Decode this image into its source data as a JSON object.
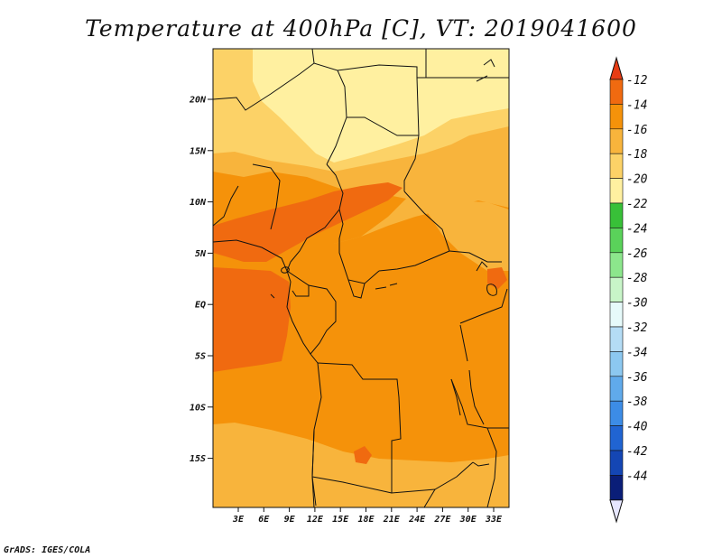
{
  "title": "Temperature at 400hPa [C], VT: 2019041600",
  "credit": "GrADS: IGES/COLA",
  "map": {
    "lat_ticks": [
      "20N",
      "15N",
      "10N",
      "5N",
      "EQ",
      "5S",
      "10S",
      "15S"
    ],
    "lon_ticks": [
      "3E",
      "6E",
      "9E",
      "12E",
      "15E",
      "18E",
      "21E",
      "24E",
      "27E",
      "30E",
      "33E"
    ],
    "lon_range": [
      0,
      35
    ],
    "lat_range": [
      -20,
      25
    ]
  },
  "colorbar": {
    "labels": [
      "-12",
      "-14",
      "-16",
      "-18",
      "-20",
      "-22",
      "-24",
      "-26",
      "-28",
      "-30",
      "-32",
      "-34",
      "-36",
      "-38",
      "-40",
      "-42",
      "-44"
    ],
    "top_color": "#e63c14",
    "bottom_color": "#e6e6ff",
    "colors": [
      "#f06a10",
      "#f5920a",
      "#f8b43c",
      "#fcd267",
      "#fff0a0",
      "#38c038",
      "#5ad25a",
      "#8ce68c",
      "#c8f5c8",
      "#e6fafa",
      "#b4dcf5",
      "#8cc8f0",
      "#60aaeb",
      "#3c8ce6",
      "#2064d2",
      "#1446b4",
      "#0a1e78"
    ]
  },
  "legend_colors": {
    "warmest": "#f06a10",
    "warm": "#f5920a",
    "mid": "#f8b43c",
    "cool": "#fcd267",
    "coolest": "#fff0a0"
  }
}
